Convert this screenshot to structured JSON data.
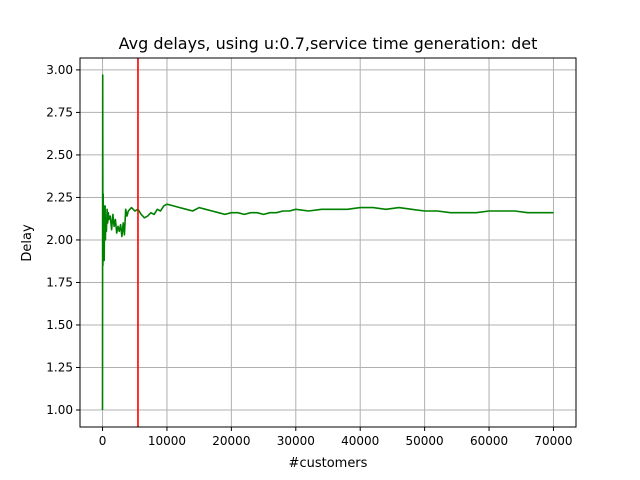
{
  "chart_data": {
    "type": "line",
    "title": "Avg delays, using u:0.7,service time generation: det",
    "xlabel": "#customers",
    "ylabel": "Delay",
    "xlim": [
      -3500,
      73500
    ],
    "ylim": [
      0.9,
      3.07
    ],
    "xticks": [
      0,
      10000,
      20000,
      30000,
      40000,
      50000,
      60000,
      70000
    ],
    "xtick_labels": [
      "0",
      "10000",
      "20000",
      "30000",
      "40000",
      "50000",
      "60000",
      "70000"
    ],
    "yticks": [
      1.0,
      1.25,
      1.5,
      1.75,
      2.0,
      2.25,
      2.5,
      2.75,
      3.0
    ],
    "ytick_labels": [
      "1.00",
      "1.25",
      "1.50",
      "1.75",
      "2.00",
      "2.25",
      "2.50",
      "2.75",
      "3.00"
    ],
    "grid": true,
    "series": [
      {
        "color": "#008000",
        "x": [
          0,
          30,
          60,
          100,
          150,
          200,
          250,
          300,
          350,
          400,
          450,
          500,
          600,
          700,
          800,
          900,
          1000,
          1200,
          1400,
          1600,
          1800,
          2000,
          2200,
          2400,
          2600,
          2800,
          3000,
          3200,
          3400,
          3600,
          3800,
          4000,
          4500,
          5000,
          5500,
          6000,
          6500,
          7000,
          7500,
          8000,
          8500,
          9000,
          9500,
          10000,
          11000,
          12000,
          13000,
          14000,
          15000,
          16000,
          17000,
          18000,
          19000,
          20000,
          21000,
          22000,
          23000,
          24000,
          25000,
          26000,
          27000,
          28000,
          29000,
          30000,
          32000,
          34000,
          36000,
          38000,
          40000,
          42000,
          44000,
          46000,
          48000,
          50000,
          52000,
          54000,
          56000,
          58000,
          60000,
          62000,
          64000,
          66000,
          68000,
          70000
        ],
        "y": [
          1.0,
          2.97,
          1.85,
          2.27,
          1.9,
          2.2,
          1.88,
          2.15,
          2.02,
          2.2,
          2.0,
          2.12,
          2.05,
          2.18,
          2.1,
          2.16,
          2.12,
          2.14,
          2.06,
          2.15,
          2.08,
          2.12,
          2.04,
          2.08,
          2.05,
          2.09,
          2.02,
          2.1,
          2.03,
          2.18,
          2.14,
          2.17,
          2.19,
          2.17,
          2.18,
          2.15,
          2.13,
          2.14,
          2.16,
          2.15,
          2.18,
          2.17,
          2.2,
          2.21,
          2.2,
          2.19,
          2.18,
          2.17,
          2.19,
          2.18,
          2.17,
          2.16,
          2.15,
          2.16,
          2.16,
          2.15,
          2.16,
          2.16,
          2.15,
          2.16,
          2.16,
          2.17,
          2.17,
          2.18,
          2.17,
          2.18,
          2.18,
          2.18,
          2.19,
          2.19,
          2.18,
          2.19,
          2.18,
          2.17,
          2.17,
          2.16,
          2.16,
          2.16,
          2.17,
          2.17,
          2.17,
          2.16,
          2.16,
          2.16
        ]
      }
    ],
    "vlines": [
      {
        "x": 5500,
        "color": "#ff0000"
      }
    ]
  }
}
